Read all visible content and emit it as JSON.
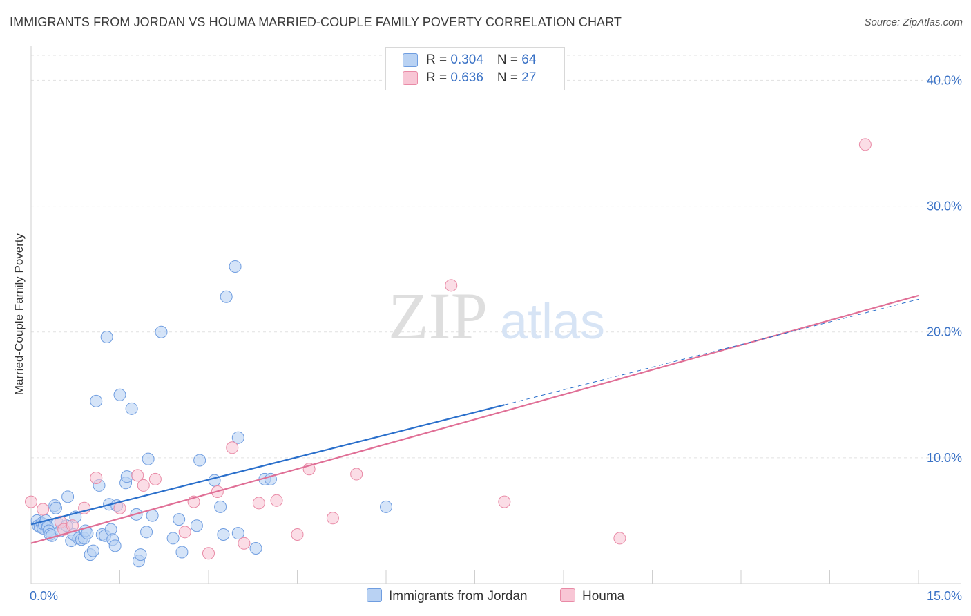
{
  "title": "IMMIGRANTS FROM JORDAN VS HOUMA MARRIED-COUPLE FAMILY POVERTY CORRELATION CHART",
  "source": "Source: ZipAtlas.com",
  "watermark": {
    "zip": "ZIP",
    "atlas": "atlas"
  },
  "legend_top": {
    "rows": [
      {
        "r_label": "R = ",
        "r_value": "0.304",
        "n_label": "N = ",
        "n_value": "64"
      },
      {
        "r_label": "R = ",
        "r_value": "0.636",
        "n_label": "N = ",
        "n_value": "27"
      }
    ]
  },
  "chart_data": {
    "type": "scatter",
    "title": "IMMIGRANTS FROM JORDAN VS HOUMA MARRIED-COUPLE FAMILY POVERTY CORRELATION CHART",
    "xlabel": "",
    "ylabel": "Married-Couple Family Poverty",
    "xlim": [
      0,
      15
    ],
    "ylim": [
      0,
      42
    ],
    "x_tick_labels": [
      "0.0%",
      "15.0%"
    ],
    "y_ticks": [
      10,
      20,
      30,
      40
    ],
    "y_tick_labels": [
      "10.0%",
      "20.0%",
      "30.0%",
      "40.0%"
    ],
    "grid": true,
    "legend_position": "bottom-center",
    "series": [
      {
        "name": "Immigrants from Jordan",
        "color": "#6f9de0",
        "fill": "#b9d2f3",
        "line_color": "#2a6fcb",
        "trend": {
          "x0": 0,
          "y0": 4.7,
          "x1": 8.0,
          "y1": 14.2,
          "dash_to_x": 15.0,
          "dash_to_y": 22.6
        },
        "points": [
          [
            0.1,
            5.0
          ],
          [
            0.12,
            4.6
          ],
          [
            0.15,
            4.5
          ],
          [
            0.18,
            4.8
          ],
          [
            0.2,
            4.4
          ],
          [
            0.22,
            4.7
          ],
          [
            0.25,
            5.0
          ],
          [
            0.28,
            4.5
          ],
          [
            0.3,
            4.2
          ],
          [
            0.32,
            3.9
          ],
          [
            0.35,
            3.8
          ],
          [
            0.4,
            6.2
          ],
          [
            0.42,
            6.0
          ],
          [
            0.45,
            4.8
          ],
          [
            0.5,
            4.2
          ],
          [
            0.6,
            4.6
          ],
          [
            0.62,
            6.9
          ],
          [
            0.68,
            3.4
          ],
          [
            0.72,
            3.9
          ],
          [
            0.75,
            5.3
          ],
          [
            0.8,
            3.6
          ],
          [
            0.85,
            3.5
          ],
          [
            0.9,
            3.6
          ],
          [
            0.92,
            4.2
          ],
          [
            0.95,
            4.0
          ],
          [
            1.0,
            2.3
          ],
          [
            1.05,
            2.6
          ],
          [
            1.1,
            14.5
          ],
          [
            1.15,
            7.8
          ],
          [
            1.2,
            3.9
          ],
          [
            1.25,
            3.8
          ],
          [
            1.28,
            19.6
          ],
          [
            1.32,
            6.3
          ],
          [
            1.35,
            4.3
          ],
          [
            1.38,
            3.5
          ],
          [
            1.42,
            3.0
          ],
          [
            1.45,
            6.2
          ],
          [
            1.5,
            15.0
          ],
          [
            1.6,
            8.0
          ],
          [
            1.62,
            8.5
          ],
          [
            1.7,
            13.9
          ],
          [
            1.78,
            5.5
          ],
          [
            1.82,
            1.8
          ],
          [
            1.85,
            2.3
          ],
          [
            1.95,
            4.1
          ],
          [
            1.98,
            9.9
          ],
          [
            2.05,
            5.4
          ],
          [
            2.2,
            20.0
          ],
          [
            2.4,
            3.6
          ],
          [
            2.5,
            5.1
          ],
          [
            2.55,
            2.5
          ],
          [
            2.8,
            4.6
          ],
          [
            2.85,
            9.8
          ],
          [
            3.1,
            8.2
          ],
          [
            3.2,
            6.1
          ],
          [
            3.25,
            3.9
          ],
          [
            3.3,
            22.8
          ],
          [
            3.45,
            25.2
          ],
          [
            3.5,
            11.6
          ],
          [
            3.5,
            4.0
          ],
          [
            3.8,
            2.8
          ],
          [
            3.95,
            8.3
          ],
          [
            4.05,
            8.3
          ],
          [
            6.0,
            6.1
          ]
        ]
      },
      {
        "name": "Houma",
        "color": "#e98aa6",
        "fill": "#f8c6d5",
        "line_color": "#e06f96",
        "trend": {
          "x0": 0,
          "y0": 3.2,
          "x1": 15.0,
          "y1": 22.9
        },
        "points": [
          [
            0.0,
            6.5
          ],
          [
            0.2,
            5.9
          ],
          [
            0.5,
            4.9
          ],
          [
            0.55,
            4.3
          ],
          [
            0.7,
            4.6
          ],
          [
            0.9,
            6.0
          ],
          [
            1.1,
            8.4
          ],
          [
            1.5,
            6.0
          ],
          [
            1.8,
            8.6
          ],
          [
            1.9,
            7.8
          ],
          [
            2.1,
            8.3
          ],
          [
            2.6,
            4.1
          ],
          [
            2.75,
            6.5
          ],
          [
            3.0,
            2.4
          ],
          [
            3.15,
            7.3
          ],
          [
            3.4,
            10.8
          ],
          [
            3.6,
            3.2
          ],
          [
            3.85,
            6.4
          ],
          [
            4.15,
            6.6
          ],
          [
            4.5,
            3.9
          ],
          [
            4.7,
            9.1
          ],
          [
            5.1,
            5.2
          ],
          [
            5.5,
            8.7
          ],
          [
            7.1,
            23.7
          ],
          [
            8.0,
            6.5
          ],
          [
            9.95,
            3.6
          ],
          [
            14.1,
            34.9
          ]
        ]
      }
    ]
  },
  "legend_bottom": [
    {
      "label": "Immigrants from Jordan"
    },
    {
      "label": "Houma"
    }
  ]
}
